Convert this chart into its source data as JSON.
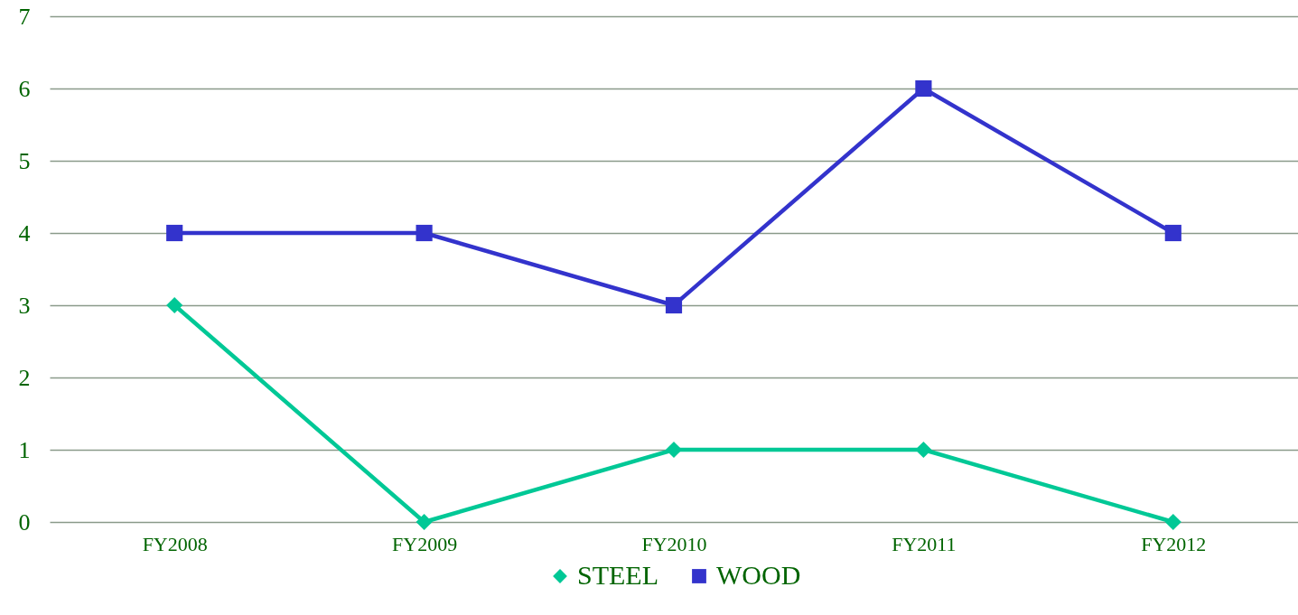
{
  "chart_data": {
    "type": "line",
    "categories": [
      "FY2008",
      "FY2009",
      "FY2010",
      "FY2011",
      "FY2012"
    ],
    "series": [
      {
        "name": "STEEL",
        "color": "#00c896",
        "marker": "diamond",
        "values": [
          3,
          0,
          1,
          1,
          0
        ]
      },
      {
        "name": "WOOD",
        "color": "#3333cc",
        "marker": "square",
        "values": [
          4,
          4,
          3,
          6,
          4
        ]
      }
    ],
    "ylim": [
      0,
      7
    ],
    "yticks": [
      0,
      1,
      2,
      3,
      4,
      5,
      6,
      7
    ],
    "grid": "y",
    "legend": "bottom",
    "line_style": "solid"
  }
}
